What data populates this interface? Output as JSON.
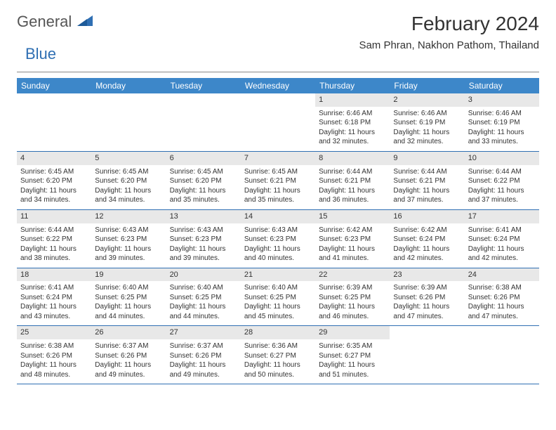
{
  "brand": {
    "part1": "General",
    "part2": "Blue",
    "logo_color": "#2f6fb3",
    "text_color": "#555555"
  },
  "title": "February 2024",
  "location": "Sam Phran, Nakhon Pathom, Thailand",
  "colors": {
    "header_bg": "#3d87c9",
    "header_text": "#ffffff",
    "daynum_bg": "#e8e8e8",
    "row_border": "#2f6fb3",
    "body_text": "#333333"
  },
  "weekdays": [
    "Sunday",
    "Monday",
    "Tuesday",
    "Wednesday",
    "Thursday",
    "Friday",
    "Saturday"
  ],
  "weeks": [
    [
      {
        "empty": true
      },
      {
        "empty": true
      },
      {
        "empty": true
      },
      {
        "empty": true
      },
      {
        "num": "1",
        "sunrise": "Sunrise: 6:46 AM",
        "sunset": "Sunset: 6:18 PM",
        "day1": "Daylight: 11 hours",
        "day2": "and 32 minutes."
      },
      {
        "num": "2",
        "sunrise": "Sunrise: 6:46 AM",
        "sunset": "Sunset: 6:19 PM",
        "day1": "Daylight: 11 hours",
        "day2": "and 32 minutes."
      },
      {
        "num": "3",
        "sunrise": "Sunrise: 6:46 AM",
        "sunset": "Sunset: 6:19 PM",
        "day1": "Daylight: 11 hours",
        "day2": "and 33 minutes."
      }
    ],
    [
      {
        "num": "4",
        "sunrise": "Sunrise: 6:45 AM",
        "sunset": "Sunset: 6:20 PM",
        "day1": "Daylight: 11 hours",
        "day2": "and 34 minutes."
      },
      {
        "num": "5",
        "sunrise": "Sunrise: 6:45 AM",
        "sunset": "Sunset: 6:20 PM",
        "day1": "Daylight: 11 hours",
        "day2": "and 34 minutes."
      },
      {
        "num": "6",
        "sunrise": "Sunrise: 6:45 AM",
        "sunset": "Sunset: 6:20 PM",
        "day1": "Daylight: 11 hours",
        "day2": "and 35 minutes."
      },
      {
        "num": "7",
        "sunrise": "Sunrise: 6:45 AM",
        "sunset": "Sunset: 6:21 PM",
        "day1": "Daylight: 11 hours",
        "day2": "and 35 minutes."
      },
      {
        "num": "8",
        "sunrise": "Sunrise: 6:44 AM",
        "sunset": "Sunset: 6:21 PM",
        "day1": "Daylight: 11 hours",
        "day2": "and 36 minutes."
      },
      {
        "num": "9",
        "sunrise": "Sunrise: 6:44 AM",
        "sunset": "Sunset: 6:21 PM",
        "day1": "Daylight: 11 hours",
        "day2": "and 37 minutes."
      },
      {
        "num": "10",
        "sunrise": "Sunrise: 6:44 AM",
        "sunset": "Sunset: 6:22 PM",
        "day1": "Daylight: 11 hours",
        "day2": "and 37 minutes."
      }
    ],
    [
      {
        "num": "11",
        "sunrise": "Sunrise: 6:44 AM",
        "sunset": "Sunset: 6:22 PM",
        "day1": "Daylight: 11 hours",
        "day2": "and 38 minutes."
      },
      {
        "num": "12",
        "sunrise": "Sunrise: 6:43 AM",
        "sunset": "Sunset: 6:23 PM",
        "day1": "Daylight: 11 hours",
        "day2": "and 39 minutes."
      },
      {
        "num": "13",
        "sunrise": "Sunrise: 6:43 AM",
        "sunset": "Sunset: 6:23 PM",
        "day1": "Daylight: 11 hours",
        "day2": "and 39 minutes."
      },
      {
        "num": "14",
        "sunrise": "Sunrise: 6:43 AM",
        "sunset": "Sunset: 6:23 PM",
        "day1": "Daylight: 11 hours",
        "day2": "and 40 minutes."
      },
      {
        "num": "15",
        "sunrise": "Sunrise: 6:42 AM",
        "sunset": "Sunset: 6:23 PM",
        "day1": "Daylight: 11 hours",
        "day2": "and 41 minutes."
      },
      {
        "num": "16",
        "sunrise": "Sunrise: 6:42 AM",
        "sunset": "Sunset: 6:24 PM",
        "day1": "Daylight: 11 hours",
        "day2": "and 42 minutes."
      },
      {
        "num": "17",
        "sunrise": "Sunrise: 6:41 AM",
        "sunset": "Sunset: 6:24 PM",
        "day1": "Daylight: 11 hours",
        "day2": "and 42 minutes."
      }
    ],
    [
      {
        "num": "18",
        "sunrise": "Sunrise: 6:41 AM",
        "sunset": "Sunset: 6:24 PM",
        "day1": "Daylight: 11 hours",
        "day2": "and 43 minutes."
      },
      {
        "num": "19",
        "sunrise": "Sunrise: 6:40 AM",
        "sunset": "Sunset: 6:25 PM",
        "day1": "Daylight: 11 hours",
        "day2": "and 44 minutes."
      },
      {
        "num": "20",
        "sunrise": "Sunrise: 6:40 AM",
        "sunset": "Sunset: 6:25 PM",
        "day1": "Daylight: 11 hours",
        "day2": "and 44 minutes."
      },
      {
        "num": "21",
        "sunrise": "Sunrise: 6:40 AM",
        "sunset": "Sunset: 6:25 PM",
        "day1": "Daylight: 11 hours",
        "day2": "and 45 minutes."
      },
      {
        "num": "22",
        "sunrise": "Sunrise: 6:39 AM",
        "sunset": "Sunset: 6:25 PM",
        "day1": "Daylight: 11 hours",
        "day2": "and 46 minutes."
      },
      {
        "num": "23",
        "sunrise": "Sunrise: 6:39 AM",
        "sunset": "Sunset: 6:26 PM",
        "day1": "Daylight: 11 hours",
        "day2": "and 47 minutes."
      },
      {
        "num": "24",
        "sunrise": "Sunrise: 6:38 AM",
        "sunset": "Sunset: 6:26 PM",
        "day1": "Daylight: 11 hours",
        "day2": "and 47 minutes."
      }
    ],
    [
      {
        "num": "25",
        "sunrise": "Sunrise: 6:38 AM",
        "sunset": "Sunset: 6:26 PM",
        "day1": "Daylight: 11 hours",
        "day2": "and 48 minutes."
      },
      {
        "num": "26",
        "sunrise": "Sunrise: 6:37 AM",
        "sunset": "Sunset: 6:26 PM",
        "day1": "Daylight: 11 hours",
        "day2": "and 49 minutes."
      },
      {
        "num": "27",
        "sunrise": "Sunrise: 6:37 AM",
        "sunset": "Sunset: 6:26 PM",
        "day1": "Daylight: 11 hours",
        "day2": "and 49 minutes."
      },
      {
        "num": "28",
        "sunrise": "Sunrise: 6:36 AM",
        "sunset": "Sunset: 6:27 PM",
        "day1": "Daylight: 11 hours",
        "day2": "and 50 minutes."
      },
      {
        "num": "29",
        "sunrise": "Sunrise: 6:35 AM",
        "sunset": "Sunset: 6:27 PM",
        "day1": "Daylight: 11 hours",
        "day2": "and 51 minutes."
      },
      {
        "empty": true
      },
      {
        "empty": true
      }
    ]
  ]
}
